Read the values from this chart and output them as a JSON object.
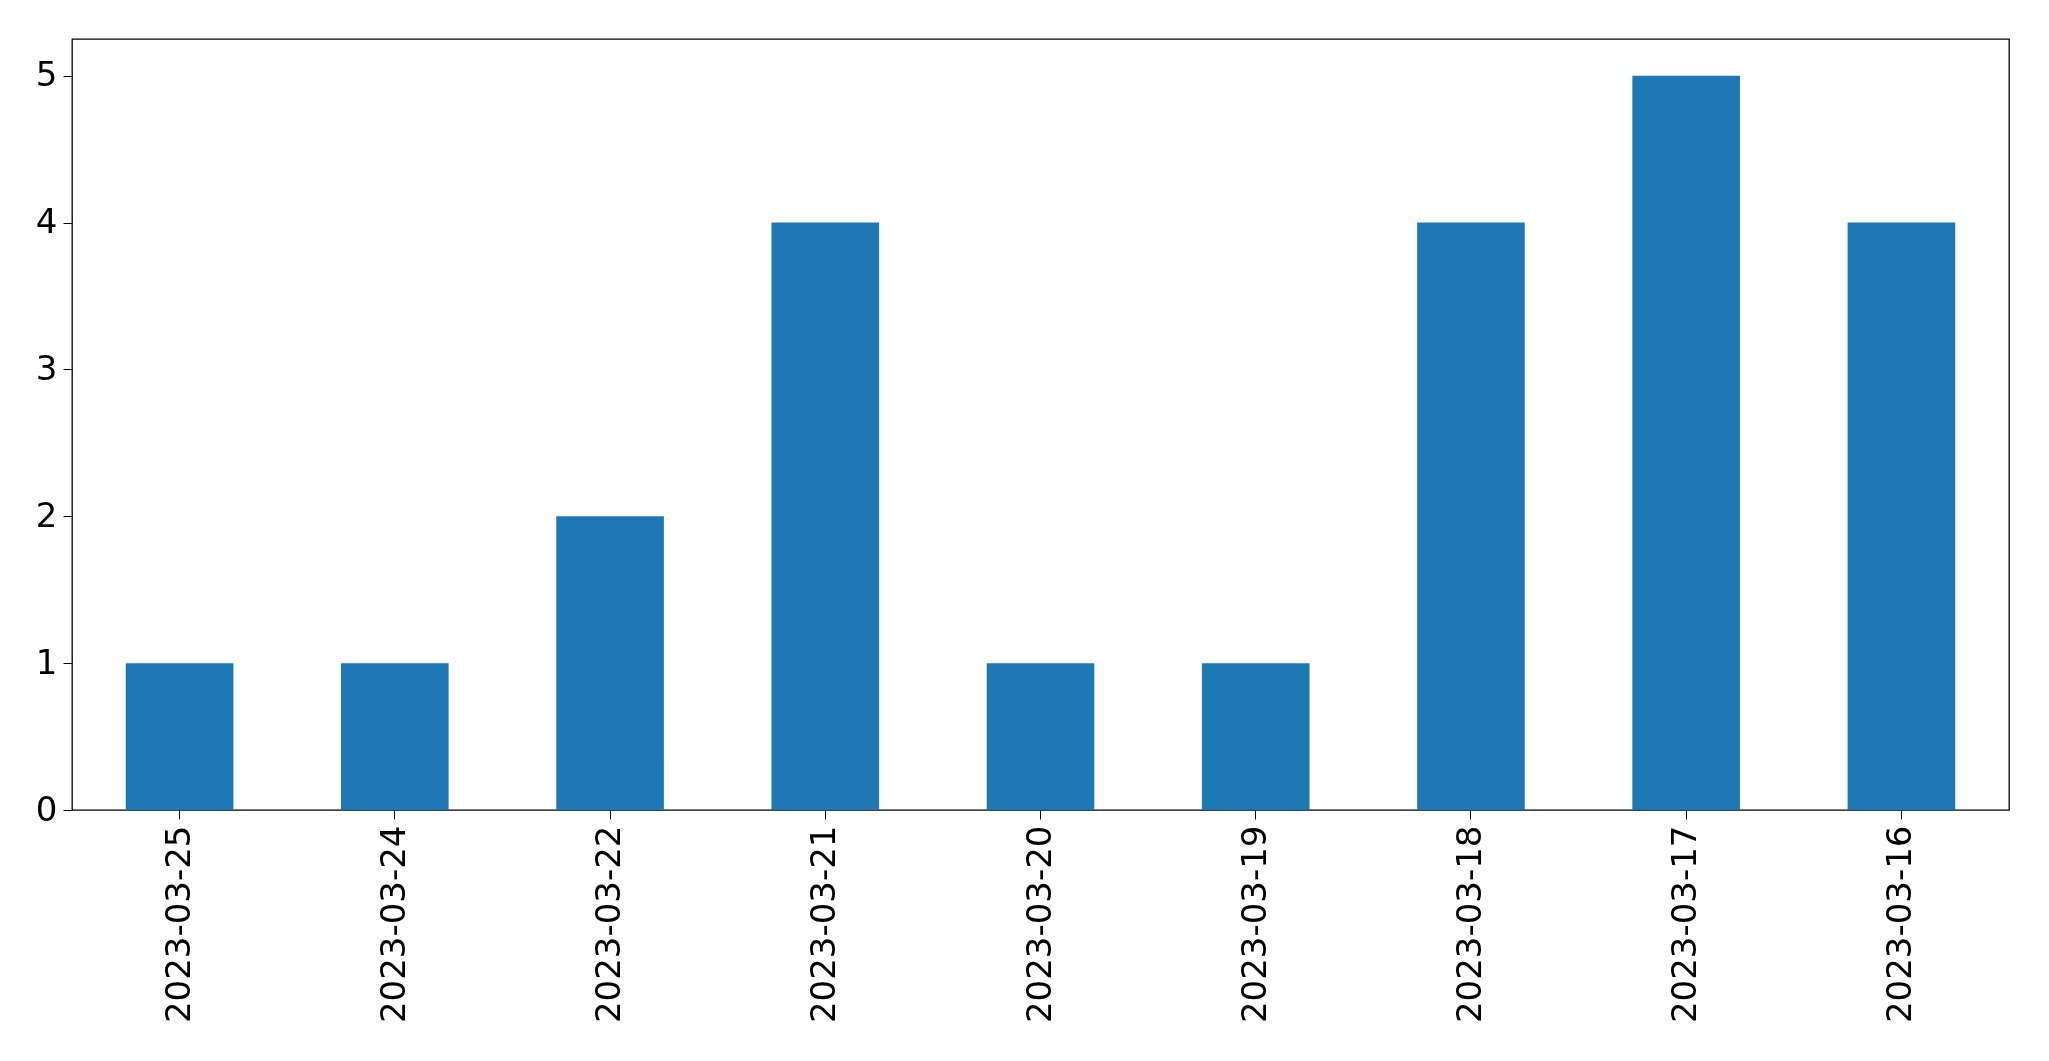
{
  "chart_data": {
    "type": "bar",
    "categories": [
      "2023-03-25",
      "2023-03-24",
      "2023-03-22",
      "2023-03-21",
      "2023-03-20",
      "2023-03-19",
      "2023-03-18",
      "2023-03-17",
      "2023-03-16"
    ],
    "values": [
      1,
      1,
      2,
      4,
      1,
      1,
      4,
      5,
      4
    ],
    "color": "#1f77b4",
    "ylim": [
      0,
      5.25
    ],
    "yticks": [
      0,
      1,
      2,
      3,
      4,
      5
    ],
    "grid": false
  }
}
